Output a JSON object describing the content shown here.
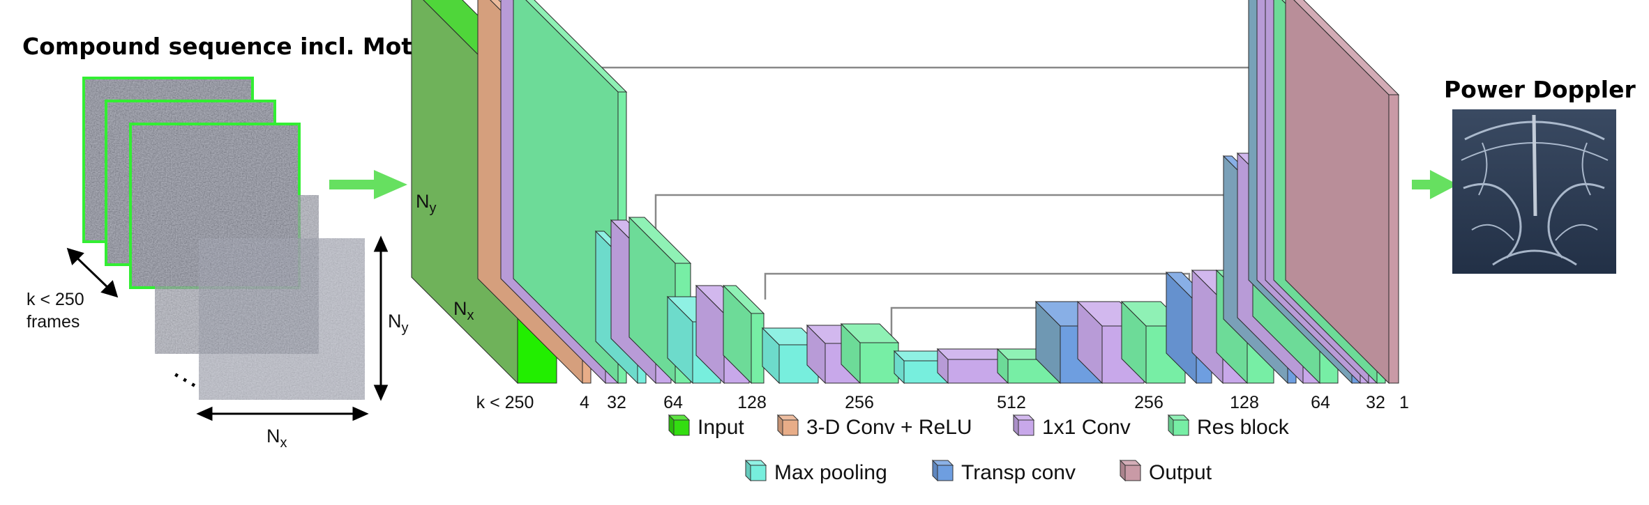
{
  "input": {
    "title": "Compound sequence incl. Motion artifacts",
    "frames_label_line1": "k < 250",
    "frames_label_line2": "frames",
    "ellipsis": "…",
    "ny": "N",
    "ny_sub": "y",
    "nx": "N",
    "nx_sub": "x"
  },
  "output": {
    "title": "Power Doppler"
  },
  "network": {
    "input_face_ny": "N",
    "input_face_ny_sub": "y",
    "input_face_nx": "N",
    "input_face_nx_sub": "x",
    "channel_labels": [
      "k < 250",
      "4",
      "32",
      "64",
      "128",
      "256",
      "512",
      "256",
      "128",
      "64",
      "32",
      "1"
    ]
  },
  "legend": {
    "items": [
      {
        "label": "Input",
        "color": "#33dd11"
      },
      {
        "label": "3-D Conv + ReLU",
        "color": "#e8ad88"
      },
      {
        "label": "1x1 Conv",
        "color": "#c8a8ea"
      },
      {
        "label": "Res block",
        "color": "#77eea5"
      },
      {
        "label": "Max pooling",
        "color": "#77eedd"
      },
      {
        "label": "Transp conv",
        "color": "#6e9ee0"
      },
      {
        "label": "Output",
        "color": "#c99aa6"
      }
    ]
  },
  "colors": {
    "input": "#22ee00",
    "conv3d": "#e8ad88",
    "conv1x1": "#c8a8ea",
    "res": "#77eea5",
    "pool": "#77eedd",
    "transp": "#6e9ee0",
    "output": "#c99aa6",
    "arrow": "#66e060",
    "frame_border": "#33ee33"
  }
}
